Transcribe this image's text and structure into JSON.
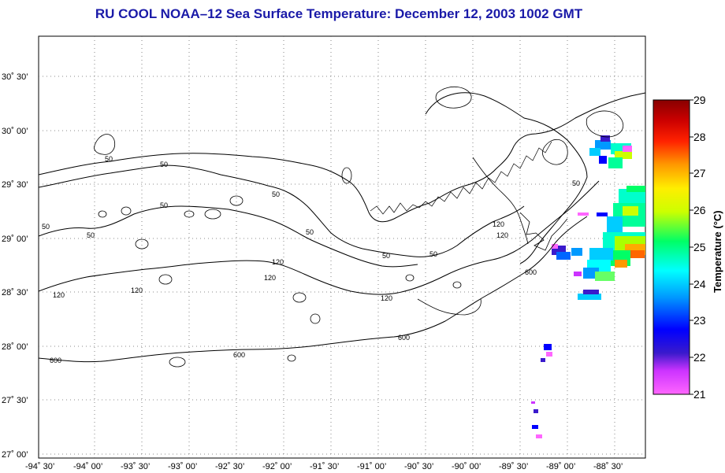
{
  "title": "RU COOL  NOAA–12  Sea Surface Temperature:  December 12, 2003 1002 GMT",
  "lat_labels": [
    "30˚ 30’",
    "30˚ 00’",
    "29˚ 30’",
    "29˚ 00’",
    "28˚ 30’",
    "28˚ 00’",
    "27˚ 30’",
    "27˚ 00’"
  ],
  "lon_labels": [
    "-94˚ 30’",
    "-94˚ 00’",
    "-93˚ 30’",
    "-93˚ 00’",
    "-92˚ 30’",
    "-92˚ 00’",
    "-91˚ 30’",
    "-91˚ 00’",
    "-90˚ 30’",
    "-90˚ 00’",
    "-89˚ 30’",
    "-89˚ 00’",
    "-88˚ 30’"
  ],
  "colorbar": {
    "title": "Temperature (°C)",
    "ticks": [
      "29",
      "28",
      "27",
      "26",
      "25",
      "24",
      "23",
      "22",
      "21"
    ],
    "colors": [
      "#ff66ff",
      "#8a2be2",
      "#0000ff",
      "#0099ff",
      "#00ffff",
      "#00ff66",
      "#ccff00",
      "#ffff00",
      "#ffaa00",
      "#ff3300",
      "#cc0000",
      "#8b0000"
    ]
  },
  "contour_labels": [
    "50",
    "50",
    "50",
    "50",
    "50",
    "50",
    "50",
    "50",
    "50",
    "50",
    "120",
    "120",
    "120",
    "120",
    "120",
    "120",
    "120",
    "600",
    "600",
    "600",
    "600"
  ]
}
